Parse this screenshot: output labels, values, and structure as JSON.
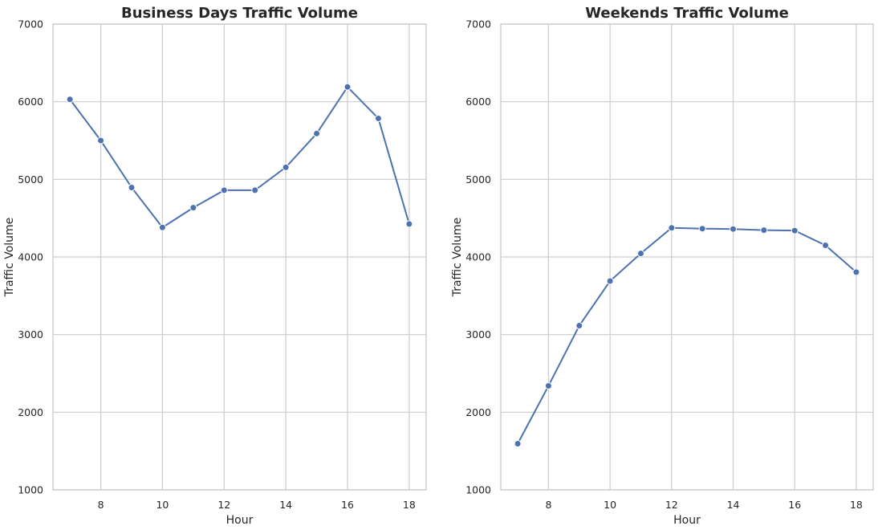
{
  "chart_data": [
    {
      "type": "line",
      "title": "Business Days Traffic Volume",
      "xlabel": "Hour",
      "ylabel": "Traffic Volume",
      "xlim": [
        6.45,
        18.55
      ],
      "ylim": [
        1000,
        7000
      ],
      "xticks": [
        8,
        10,
        12,
        14,
        16,
        18
      ],
      "yticks": [
        1000,
        2000,
        3000,
        4000,
        5000,
        6000,
        7000
      ],
      "grid": true,
      "series": [
        {
          "x": [
            7,
            8,
            9,
            10,
            11,
            12,
            13,
            14,
            15,
            16,
            17,
            18
          ],
          "values": [
            6030,
            5500,
            4895,
            4380,
            4635,
            4860,
            4860,
            5155,
            5590,
            6190,
            5785,
            4425
          ]
        }
      ]
    },
    {
      "type": "line",
      "title": "Weekends Traffic Volume",
      "xlabel": "Hour",
      "ylabel": "Traffic Volume",
      "xlim": [
        6.45,
        18.55
      ],
      "ylim": [
        1000,
        7000
      ],
      "xticks": [
        8,
        10,
        12,
        14,
        16,
        18
      ],
      "yticks": [
        1000,
        2000,
        3000,
        4000,
        5000,
        6000,
        7000
      ],
      "grid": true,
      "series": [
        {
          "x": [
            7,
            8,
            9,
            10,
            11,
            12,
            13,
            14,
            15,
            16,
            17,
            18
          ],
          "values": [
            1595,
            2340,
            3115,
            3690,
            4045,
            4375,
            4365,
            4360,
            4345,
            4340,
            4150,
            3805
          ]
        }
      ]
    }
  ],
  "colors": {
    "line": "#4c72b0"
  }
}
